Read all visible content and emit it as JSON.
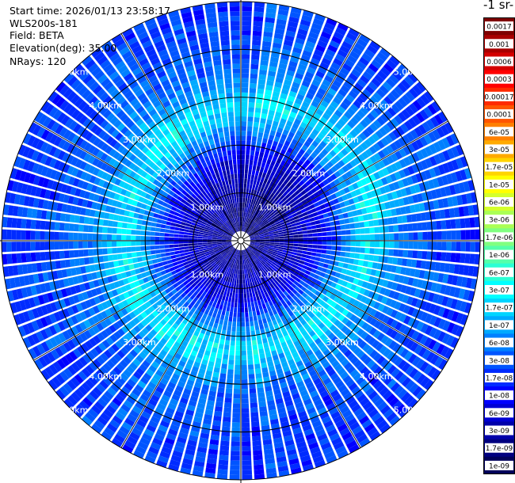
{
  "header": {
    "start_time": "Start time: 2026/01/13 23:58:17",
    "instrument": "WLS200s-181",
    "field": "Field: BETA",
    "elevation": "Elevation(deg): 35.00",
    "nrays": "NRays: 120"
  },
  "chart_data": {
    "type": "heatmap",
    "projection": "polar-ppi",
    "field": "BETA",
    "elevation_deg": 35.0,
    "nrays": 120,
    "range_rings_km": [
      1,
      2,
      3,
      4,
      5
    ],
    "ring_labels": [
      "1.00km",
      "2.00km",
      "3.00km",
      "4.00km",
      "5.00km"
    ],
    "max_range_km": 5.0,
    "radial_lines_every_deg": 30,
    "colorbar": {
      "unit_label": "-1 sr-",
      "tick_labels": [
        "0.0017",
        "0.001",
        "0.0006",
        "0.0003",
        "0.00017",
        "0.0001",
        "6e-05",
        "3e-05",
        "1.7e-05",
        "1e-05",
        "6e-06",
        "3e-06",
        "1.7e-06",
        "1e-06",
        "6e-07",
        "3e-07",
        "1.7e-07",
        "1e-07",
        "6e-08",
        "3e-08",
        "1.7e-08",
        "1e-08",
        "6e-09",
        "3e-09",
        "1.7e-09",
        "1e-09"
      ],
      "colors": [
        "#7f0000",
        "#a80000",
        "#d40000",
        "#ff0000",
        "#ff2a00",
        "#ff5500",
        "#ff8000",
        "#ffaa00",
        "#ffd400",
        "#ffff00",
        "#d4ff2b",
        "#aaff55",
        "#80ff80",
        "#55ffaa",
        "#2bffd4",
        "#00ffff",
        "#00d4ff",
        "#00aaff",
        "#0080ff",
        "#0055ff",
        "#002bff",
        "#0000ff",
        "#0000d4",
        "#0000aa",
        "#000080",
        "#00005a"
      ]
    },
    "profile_log10_beta_by_range_km": [
      [
        0.0,
        -8.7
      ],
      [
        0.5,
        -8.6
      ],
      [
        1.0,
        -8.4
      ],
      [
        1.4,
        -8.2
      ],
      [
        1.7,
        -7.8
      ],
      [
        2.0,
        -7.3
      ],
      [
        2.3,
        -6.9
      ],
      [
        2.5,
        -6.6
      ],
      [
        2.7,
        -6.7
      ],
      [
        3.0,
        -7.1
      ],
      [
        3.5,
        -7.4
      ],
      [
        4.0,
        -7.55
      ],
      [
        4.5,
        -7.65
      ],
      [
        5.0,
        -7.7
      ]
    ]
  }
}
